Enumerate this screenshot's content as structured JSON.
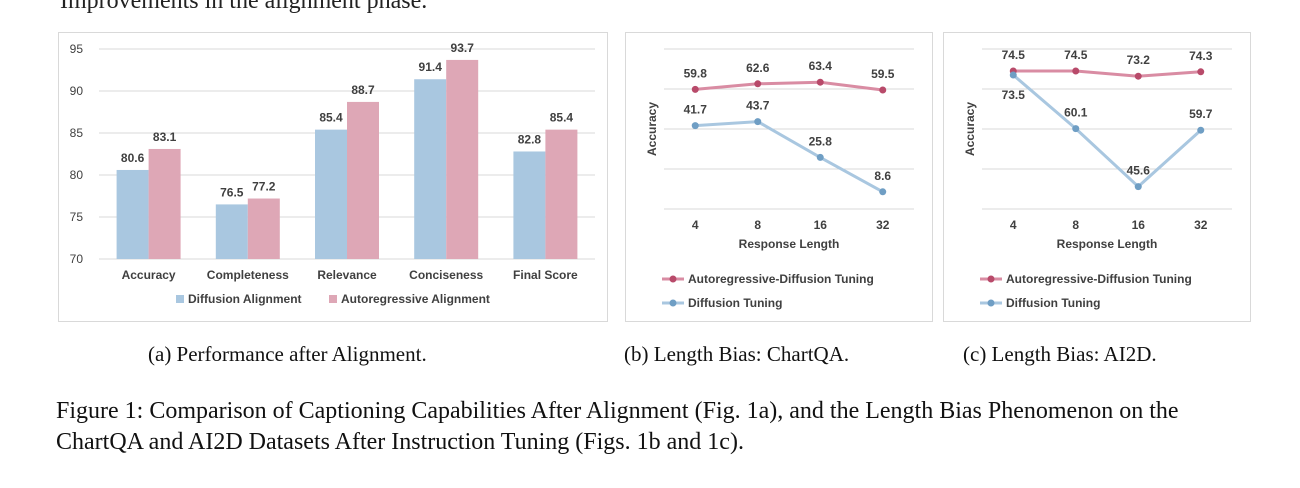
{
  "top_cutoff_text": "Improvements in the alignment phase.",
  "subcaptions": {
    "a": "(a) Performance after Alignment.",
    "b": "(b) Length Bias: ChartQA.",
    "c": "(c) Length Bias: AI2D."
  },
  "figure_caption": "Figure 1: Comparison of Captioning Capabilities After Alignment (Fig. 1a), and the Length Bias Phenomenon on the ChartQA and AI2D Datasets After Instruction Tuning (Figs. 1b and 1c).",
  "colors": {
    "blue": "#a9c7e0",
    "pink": "#dea7b6",
    "pink_line": "#d98ca3",
    "pink_marker": "#b84a6a",
    "blue_line": "#a9c7e0",
    "blue_marker": "#6f9ec4",
    "grid": "#d9d9d9",
    "text": "#404040"
  },
  "chart_data": [
    {
      "type": "bar",
      "categories": [
        "Accuracy",
        "Completeness",
        "Relevance",
        "Conciseness",
        "Final Score"
      ],
      "series": [
        {
          "name": "Diffusion Alignment",
          "values": [
            80.6,
            76.5,
            85.4,
            91.4,
            82.8
          ]
        },
        {
          "name": "Autoregressive Alignment",
          "values": [
            83.1,
            77.2,
            88.7,
            93.7,
            85.4
          ]
        }
      ],
      "yticks": [
        70,
        75,
        80,
        85,
        90,
        95
      ],
      "ylim": [
        70,
        95
      ],
      "grid": true,
      "legend": "bottom"
    },
    {
      "type": "line",
      "x": [
        "4",
        "8",
        "16",
        "32"
      ],
      "xlabel": "Response Length",
      "ylabel": "Accuracy",
      "series": [
        {
          "name": "Autoregressive-Diffusion Tuning",
          "values": [
            59.8,
            62.6,
            63.4,
            59.5
          ]
        },
        {
          "name": "Diffusion Tuning",
          "values": [
            41.7,
            43.7,
            25.8,
            8.6
          ]
        }
      ],
      "ylim": [
        0,
        80
      ],
      "grid": true,
      "legend": "bottom"
    },
    {
      "type": "line",
      "x": [
        "4",
        "8",
        "16",
        "32"
      ],
      "xlabel": "Response Length",
      "ylabel": "Accuracy",
      "series": [
        {
          "name": "Autoregressive-Diffusion Tuning",
          "values": [
            74.5,
            74.5,
            73.2,
            74.3
          ]
        },
        {
          "name": "Diffusion Tuning",
          "values": [
            73.5,
            60.1,
            45.6,
            59.7
          ]
        }
      ],
      "ylim": [
        40,
        80
      ],
      "grid": true,
      "legend": "bottom"
    }
  ]
}
